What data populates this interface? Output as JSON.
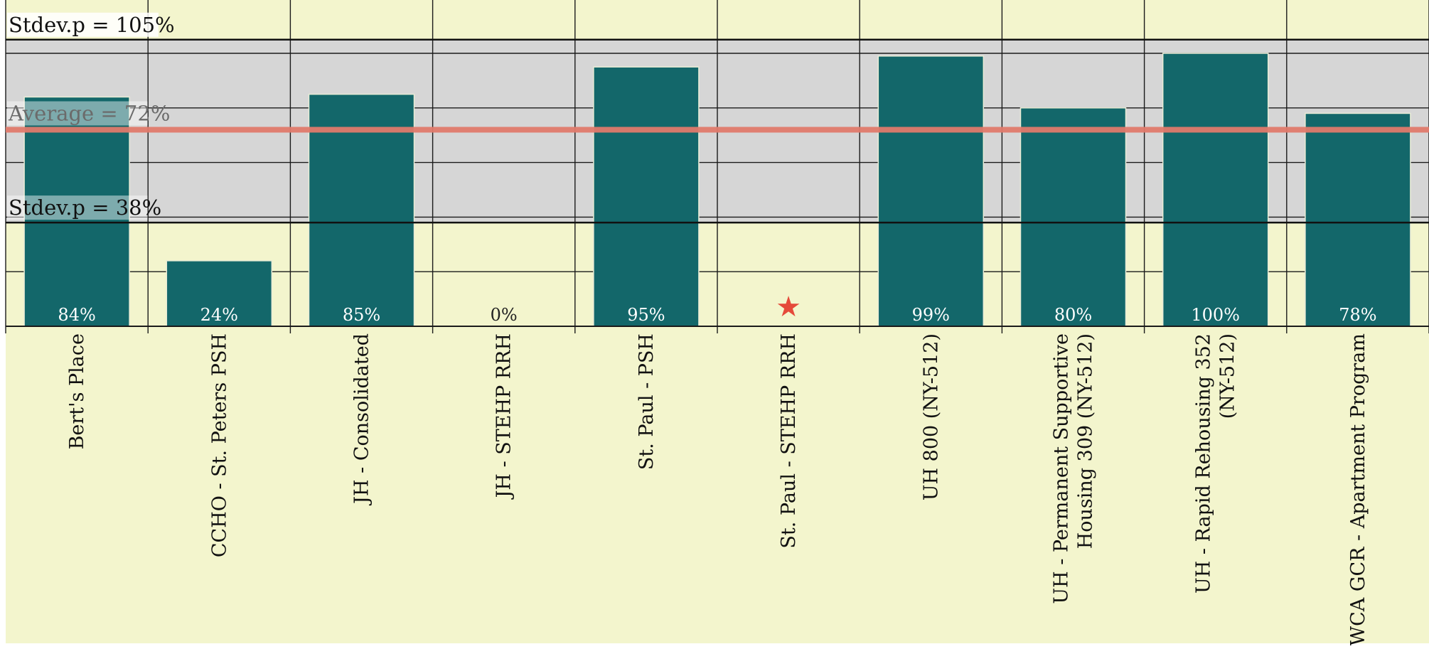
{
  "chart_data": {
    "type": "bar",
    "categories": [
      "Bert's Place",
      "CCHO - St. Peters PSH",
      "JH - Consolidated",
      "JH - STEHP RRH",
      "St. Paul - PSH",
      "St. Paul - STEHP RRH",
      "UH 800 (NY-512)",
      "UH - Permanent Supportive Housing 309 (NY-512)",
      "UH - Rapid Rehousing 352 (NY-512)",
      "YWCA GCR - Apartment Program"
    ],
    "category_lines": [
      [
        "Bert's Place"
      ],
      [
        "CCHO - St. Peters PSH"
      ],
      [
        "JH - Consolidated"
      ],
      [
        "JH - STEHP RRH"
      ],
      [
        "St. Paul - PSH"
      ],
      [
        "St. Paul - STEHP RRH"
      ],
      [
        "UH 800 (NY-512)"
      ],
      [
        "UH - Permanent Supportive",
        "Housing 309 (NY-512)"
      ],
      [
        "UH - Rapid Rehousing 352",
        "(NY-512)"
      ],
      [
        "YWCA GCR - Apartment Program"
      ]
    ],
    "values": [
      84,
      24,
      85,
      0,
      95,
      null,
      99,
      80,
      100,
      78
    ],
    "value_labels": [
      "84%",
      "24%",
      "85%",
      "0%",
      "95%",
      "",
      "99%",
      "80%",
      "100%",
      "78%"
    ],
    "markers": [
      {
        "category_index": 5,
        "symbol": "★"
      }
    ],
    "ylim": [
      0,
      105
    ],
    "yticks": [
      0,
      20,
      40,
      60,
      80,
      100
    ],
    "average": {
      "value": 72,
      "label": "Average = 72%"
    },
    "band": {
      "upper": {
        "value": 105,
        "label": "Stdev.p = 105%"
      },
      "lower": {
        "value": 38,
        "label": "Stdev.p = 38%"
      }
    },
    "grid": true,
    "title": "",
    "xlabel": "",
    "ylabel": ""
  },
  "colors": {
    "background": "#f3f5cd",
    "band": "#d6d6d6",
    "bar": "#13676a",
    "bar_edge": "#e9ecd6",
    "average_line": "#e07a6c",
    "marker": "#e54a3a",
    "grid": "#1a1a1a"
  }
}
